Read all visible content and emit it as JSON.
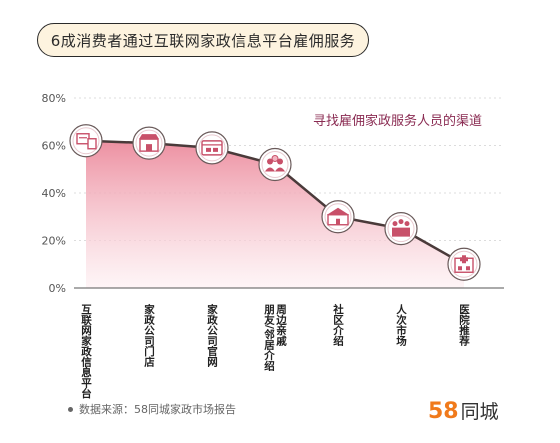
{
  "header": {
    "title": "6成消费者通过互联网家政信息平台雇佣服务"
  },
  "chart_data": {
    "type": "area",
    "subtitle": "寻找雇佣家政服务人员的渠道",
    "categories": [
      "互联网家政信息平台",
      "家政公司门店",
      "家政公司官网",
      "周边亲戚朋友/邻居介绍",
      "社区介绍",
      "人次市场",
      "医院推荐"
    ],
    "category_lines": [
      [
        "互联网家政信息平台"
      ],
      [
        "家政公司门店"
      ],
      [
        "家政公司官网"
      ],
      [
        "周边亲戚",
        "朋友/邻居介绍"
      ],
      [
        "社区介绍"
      ],
      [
        "人次市场"
      ],
      [
        "医院推荐"
      ]
    ],
    "values": [
      62,
      61,
      59,
      52,
      30,
      25,
      10
    ],
    "yticks": [
      "80%",
      "60%",
      "40%",
      "20%",
      "0%"
    ],
    "ylim": [
      0,
      80
    ],
    "icons": [
      "website-icon",
      "storefront-icon",
      "browser-icon",
      "friends-icon",
      "community-icon",
      "labor-market-icon",
      "hospital-icon"
    ],
    "colors": {
      "line": "#4a3a3a",
      "area_top": "#ec8a9c",
      "area_bottom": "#fdeef1",
      "icon_fill": "#c85069"
    }
  },
  "footer": {
    "source": "数据来源：58同城家政市场报告",
    "logo_number": "58",
    "logo_text": "同城"
  }
}
